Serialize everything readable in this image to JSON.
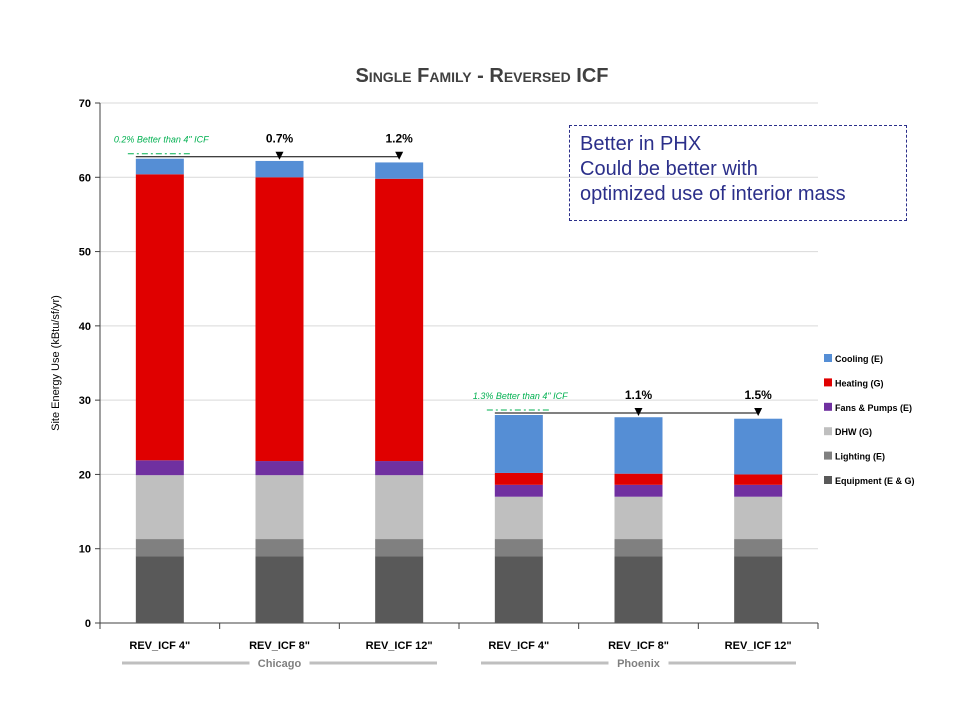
{
  "chart_data": {
    "type": "bar",
    "stacked": true,
    "title": "Single Family - Reversed ICF",
    "xlabel": "",
    "ylabel": "Site Energy Use (kBtu/sf/yr)",
    "ylim": [
      0,
      70
    ],
    "yticks": [
      0,
      10,
      20,
      30,
      40,
      50,
      60,
      70
    ],
    "categories": [
      "REV_ICF 4\"",
      "REV_ICF 8\"",
      "REV_ICF 12\"",
      "REV_ICF 4\"",
      "REV_ICF 8\"",
      "REV_ICF 12\""
    ],
    "groups": [
      {
        "label": "Chicago",
        "indices": [
          0,
          1,
          2
        ]
      },
      {
        "label": "Phoenix",
        "indices": [
          3,
          4,
          5
        ]
      }
    ],
    "legend_position": "right",
    "series": [
      {
        "name": "Equipment (E & G)",
        "color": "#595959",
        "values": [
          9.0,
          9.0,
          9.0,
          9.0,
          9.0,
          9.0
        ]
      },
      {
        "name": "Lighting (E)",
        "color": "#808080",
        "values": [
          2.3,
          2.3,
          2.3,
          2.3,
          2.3,
          2.3
        ]
      },
      {
        "name": "DHW (G)",
        "color": "#bfbfbf",
        "values": [
          8.6,
          8.6,
          8.6,
          5.7,
          5.7,
          5.7
        ]
      },
      {
        "name": "Fans & Pumps (E)",
        "color": "#7030a0",
        "values": [
          2.0,
          1.9,
          1.9,
          1.6,
          1.6,
          1.6
        ]
      },
      {
        "name": "Heating (G)",
        "color": "#e00000",
        "values": [
          38.5,
          38.2,
          38.0,
          1.6,
          1.5,
          1.4
        ]
      },
      {
        "name": "Cooling (E)",
        "color": "#558ed5",
        "values": [
          2.1,
          2.2,
          2.2,
          7.8,
          7.6,
          7.5
        ]
      }
    ],
    "annotations": {
      "chicago_base_note": "0.2% Better than 4\" ICF",
      "chicago_pct": [
        "0.7%",
        "1.2%"
      ],
      "phoenix_base_note": "1.3% Better than 4\" ICF",
      "phoenix_pct": [
        "1.1%",
        "1.5%"
      ]
    }
  },
  "callout": {
    "lines": [
      "Better in PHX",
      "Could be better with",
      "optimized use of interior mass"
    ]
  }
}
